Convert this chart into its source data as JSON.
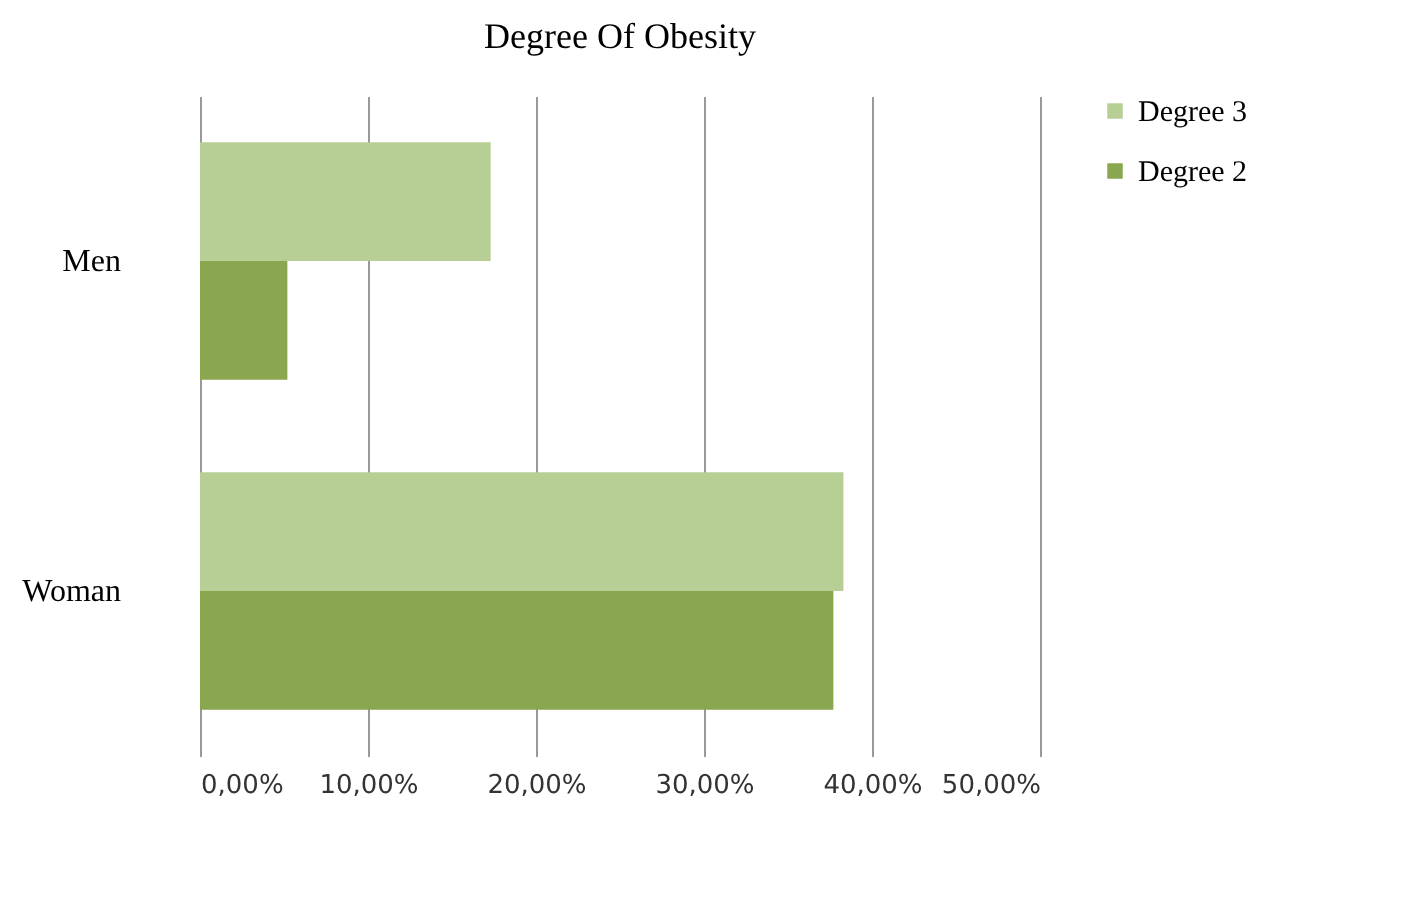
{
  "chart_data": {
    "type": "bar",
    "orientation": "horizontal",
    "title": "Degree Of Obesity",
    "categories": [
      "Men",
      "Woman"
    ],
    "series": [
      {
        "name": "Degree 3",
        "color": "#b7cf95",
        "values": [
          17.3,
          38.3
        ]
      },
      {
        "name": "Degree 2",
        "color": "#8aa74f",
        "values": [
          5.2,
          37.7
        ]
      }
    ],
    "xlim": [
      0,
      50
    ],
    "xticks": [
      {
        "value": 0,
        "label": "0,00%"
      },
      {
        "value": 10,
        "label": "10,00%"
      },
      {
        "value": 20,
        "label": "20,00%"
      },
      {
        "value": 30,
        "label": "30,00%"
      },
      {
        "value": 40,
        "label": "40,00%"
      },
      {
        "value": 50,
        "label": "50,00%"
      }
    ],
    "grid": "x",
    "legend": "right"
  }
}
